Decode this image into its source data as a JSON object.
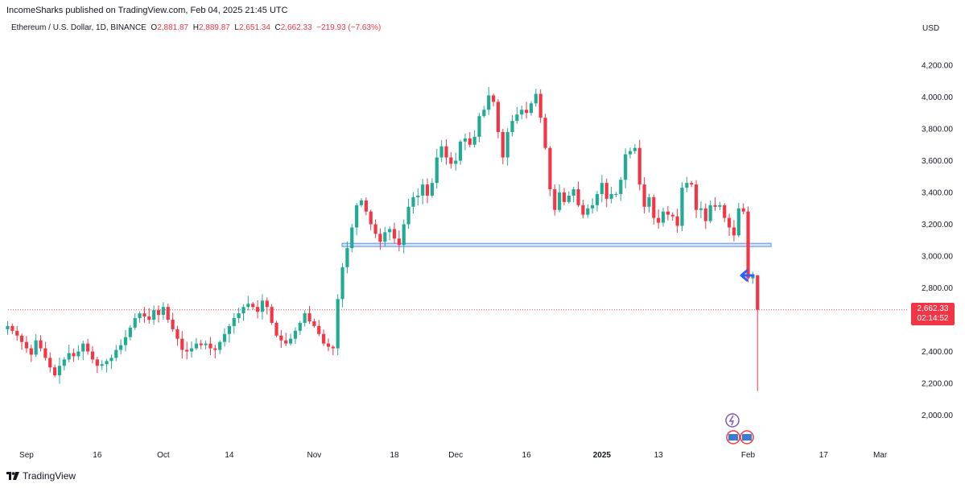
{
  "publisher": "IncomeSharks published on TradingView.com, Feb 04, 2025 21:45 UTC",
  "symbol": {
    "name": "Ethereum / U.S. Dollar, 1D, BINANCE",
    "o_label": "O",
    "o": "2,881.87",
    "h_label": "H",
    "h": "2,889.87",
    "l_label": "L",
    "l": "2,651.34",
    "c_label": "C",
    "c": "2,662.33",
    "change": "−219.93 (−7.63%)"
  },
  "currency": "USD",
  "last_price": "2,662.33",
  "countdown": "02:14:52",
  "footer": {
    "brand": "TradingView"
  },
  "colors": {
    "up": "#22ab94",
    "down": "#f23645",
    "support": "#a9c8f5",
    "arrow": "#2962ff"
  },
  "chart_data": {
    "type": "candlestick",
    "y_ticks": [
      "4,200.00",
      "4,000.00",
      "3,800.00",
      "3,600.00",
      "3,400.00",
      "3,200.00",
      "3,000.00",
      "2,800.00",
      "2,400.00",
      "2,200.00",
      "2,000.00"
    ],
    "y_tick_values": [
      4200,
      4000,
      3800,
      3600,
      3400,
      3200,
      3000,
      2800,
      2400,
      2200,
      2000
    ],
    "ylim": [
      1920,
      4300
    ],
    "x_ticks": [
      {
        "label": "Sep",
        "index": 4
      },
      {
        "label": "16",
        "index": 19
      },
      {
        "label": "Oct",
        "index": 33
      },
      {
        "label": "14",
        "index": 47
      },
      {
        "label": "Nov",
        "index": 65
      },
      {
        "label": "18",
        "index": 82
      },
      {
        "label": "Dec",
        "index": 95
      },
      {
        "label": "16",
        "index": 110
      },
      {
        "label": "2025",
        "index": 126,
        "bold": true
      },
      {
        "label": "13",
        "index": 138
      },
      {
        "label": "Feb",
        "index": 157
      },
      {
        "label": "17",
        "index": 173
      },
      {
        "label": "Mar",
        "index": 185
      }
    ],
    "support_zone": [
      3060,
      3080
    ],
    "close_series": [
      2560,
      2530,
      2500,
      2460,
      2420,
      2380,
      2470,
      2420,
      2360,
      2300,
      2250,
      2310,
      2350,
      2390,
      2370,
      2400,
      2450,
      2400,
      2350,
      2310,
      2320,
      2340,
      2360,
      2410,
      2440,
      2490,
      2550,
      2610,
      2640,
      2620,
      2600,
      2660,
      2630,
      2680,
      2600,
      2540,
      2480,
      2410,
      2400,
      2420,
      2450,
      2440,
      2450,
      2420,
      2410,
      2460,
      2510,
      2560,
      2610,
      2640,
      2680,
      2700,
      2680,
      2650,
      2720,
      2680,
      2580,
      2500,
      2470,
      2450,
      2480,
      2530,
      2580,
      2640,
      2590,
      2560,
      2510,
      2450,
      2430,
      2420,
      2730,
      2930,
      3050,
      3180,
      3320,
      3350,
      3280,
      3200,
      3140,
      3090,
      3150,
      3170,
      3110,
      3070,
      3200,
      3310,
      3370,
      3380,
      3450,
      3380,
      3460,
      3620,
      3690,
      3620,
      3580,
      3600,
      3720,
      3740,
      3700,
      3750,
      3880,
      3920,
      4010,
      3970,
      3780,
      3620,
      3780,
      3850,
      3890,
      3920,
      3900,
      3960,
      4020,
      3870,
      3680,
      3420,
      3290,
      3400,
      3340,
      3380,
      3420,
      3320,
      3260,
      3300,
      3320,
      3390,
      3460,
      3360,
      3390,
      3390,
      3480,
      3640,
      3660,
      3680,
      3450,
      3310,
      3370,
      3240,
      3210,
      3280,
      3260,
      3250,
      3190,
      3430,
      3460,
      3450,
      3290,
      3300,
      3220,
      3320,
      3310,
      3320,
      3240,
      3180,
      3130,
      3300,
      3280,
      2860,
      2880,
      2662.33
    ],
    "special_wicks": [
      {
        "index": 159,
        "low": 2151,
        "high": 2880
      }
    ],
    "annotations": [
      "blue-arrow-left"
    ]
  }
}
